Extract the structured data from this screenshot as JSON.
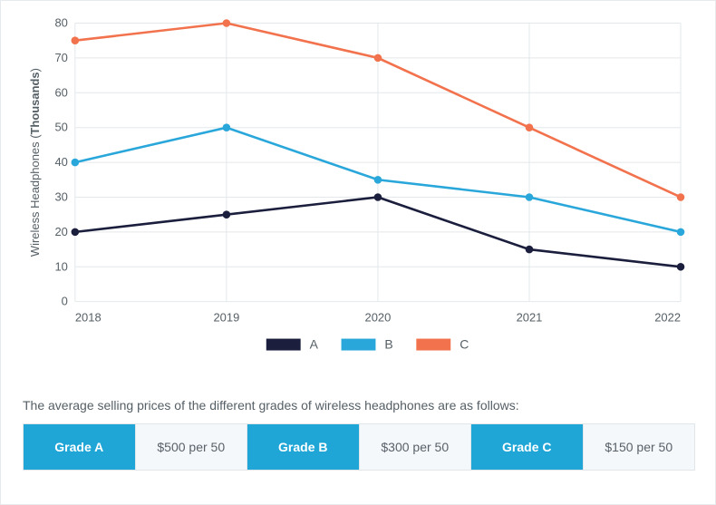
{
  "chart": {
    "type": "line",
    "y_axis": {
      "label": "Wireless Headphones (",
      "label_bold": "Thousands",
      "label_suffix": ")",
      "min": 0,
      "max": 80,
      "step": 10,
      "fontsize": 13,
      "color": "#555f66"
    },
    "x_axis": {
      "categories": [
        "2018",
        "2019",
        "2020",
        "2021",
        "2022"
      ],
      "fontsize": 13,
      "color": "#555f66"
    },
    "grid_color": "#e3e8eb",
    "background_color": "#ffffff",
    "series": [
      {
        "name": "A",
        "color": "#1b1e3c",
        "values": [
          20,
          25,
          30,
          15,
          10
        ],
        "marker": "circle",
        "line_width": 2.6
      },
      {
        "name": "B",
        "color": "#2aa7da",
        "values": [
          40,
          50,
          35,
          30,
          20
        ],
        "marker": "circle",
        "line_width": 2.6
      },
      {
        "name": "C",
        "color": "#f2724d",
        "values": [
          75,
          80,
          70,
          50,
          30
        ],
        "marker": "circle",
        "line_width": 2.6
      }
    ],
    "legend": {
      "fontsize": 14,
      "items": [
        "A",
        "B",
        "C"
      ]
    }
  },
  "caption": "The average selling prices of the different grades of wireless headphones are as follows:",
  "price_table": {
    "head_bg": "#1fa6d6",
    "head_fg": "#ffffff",
    "val_bg": "#f5f8fa",
    "val_fg": "#586069",
    "border": "#e1e6ea",
    "cells": [
      {
        "type": "head",
        "text": "Grade A"
      },
      {
        "type": "val",
        "text": "$500 per 50"
      },
      {
        "type": "head",
        "text": "Grade B"
      },
      {
        "type": "val",
        "text": "$300 per 50"
      },
      {
        "type": "head",
        "text": "Grade C"
      },
      {
        "type": "val",
        "text": "$150 per 50"
      }
    ]
  }
}
